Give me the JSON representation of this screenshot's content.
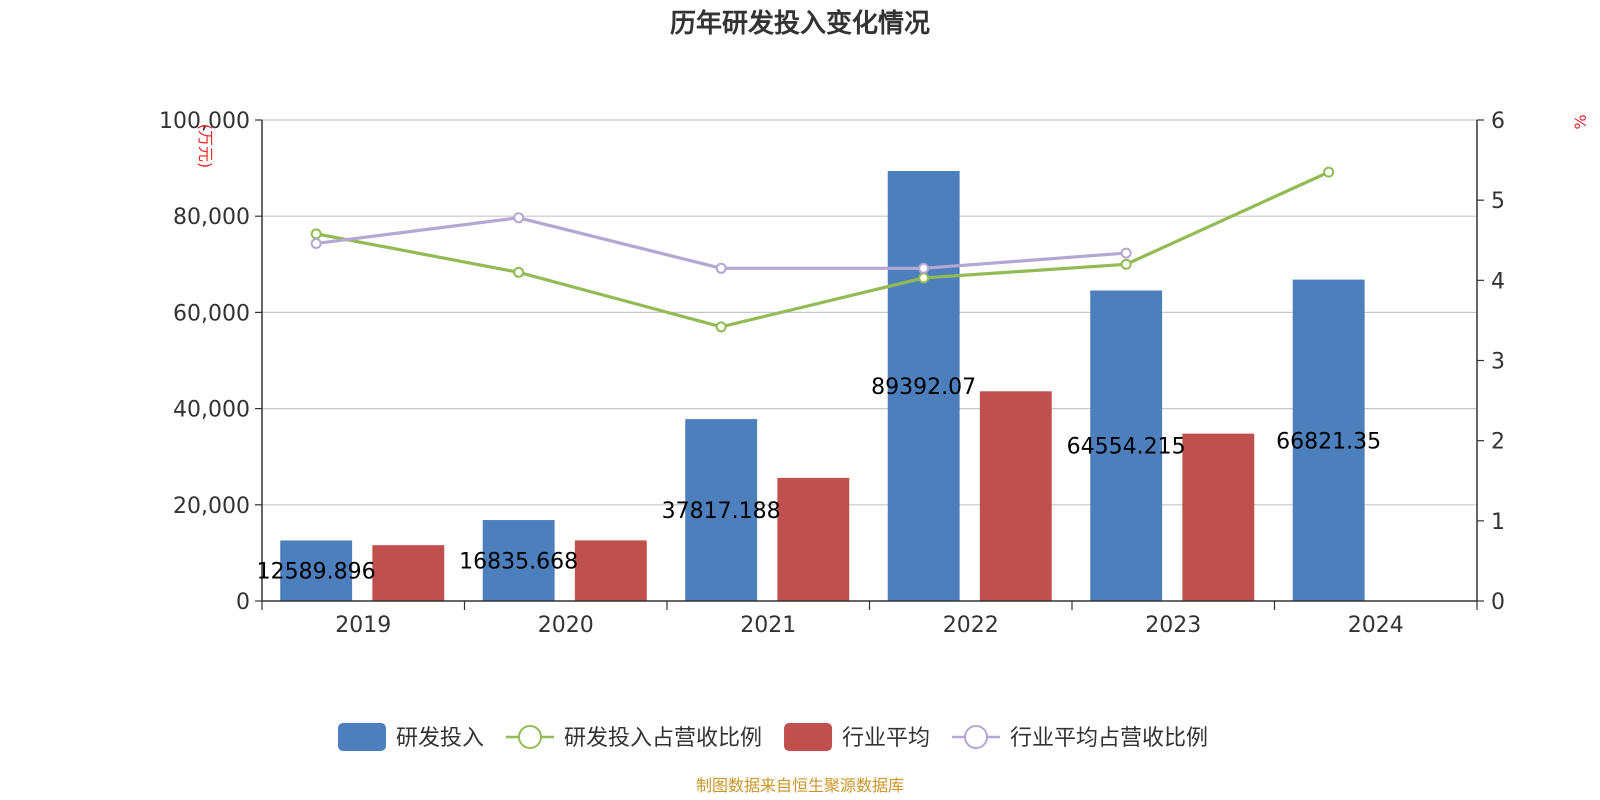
{
  "chart_data": {
    "type": "bar",
    "title": "历年研发投入变化情况",
    "categories": [
      "2019",
      "2020",
      "2021",
      "2022",
      "2023",
      "2024"
    ],
    "y_left": {
      "unit_label": "(万元)",
      "min": 0,
      "max": 100000,
      "ticks": [
        "0",
        "20,000",
        "40,000",
        "60,000",
        "80,000",
        "100,000"
      ],
      "tick_values": [
        0,
        20000,
        40000,
        60000,
        80000,
        100000
      ]
    },
    "y_right": {
      "unit_label": "%",
      "min": 0,
      "max": 6,
      "ticks": [
        "0",
        "1",
        "2",
        "3",
        "4",
        "5",
        "6"
      ],
      "tick_values": [
        0,
        1,
        2,
        3,
        4,
        5,
        6
      ]
    },
    "series": [
      {
        "name": "研发投入",
        "kind": "bar",
        "axis": "left",
        "color": "#4e7fbd",
        "values": [
          12589.896,
          16835.668,
          37817.188,
          89392.07,
          64554.215,
          66821.35
        ],
        "labels": [
          "12589.896",
          "16835.668",
          "37817.188",
          "89392.07",
          "64554.215",
          "66821.35"
        ]
      },
      {
        "name": "研发投入占营收比例",
        "kind": "line",
        "axis": "right",
        "color": "#93bb55",
        "values": [
          4.58,
          4.1,
          3.42,
          4.03,
          4.2,
          5.35
        ]
      },
      {
        "name": "行业平均",
        "kind": "bar",
        "axis": "left",
        "color": "#c0504d",
        "values": [
          11600,
          12600,
          25600,
          43600,
          34800,
          null
        ]
      },
      {
        "name": "行业平均占营收比例",
        "kind": "line",
        "axis": "right",
        "color": "#b4a7d1",
        "values": [
          4.46,
          4.78,
          4.15,
          4.15,
          4.34,
          null
        ]
      }
    ],
    "grid": true,
    "legend_position": "bottom"
  },
  "source_note": "制图数据来自恒生聚源数据库"
}
